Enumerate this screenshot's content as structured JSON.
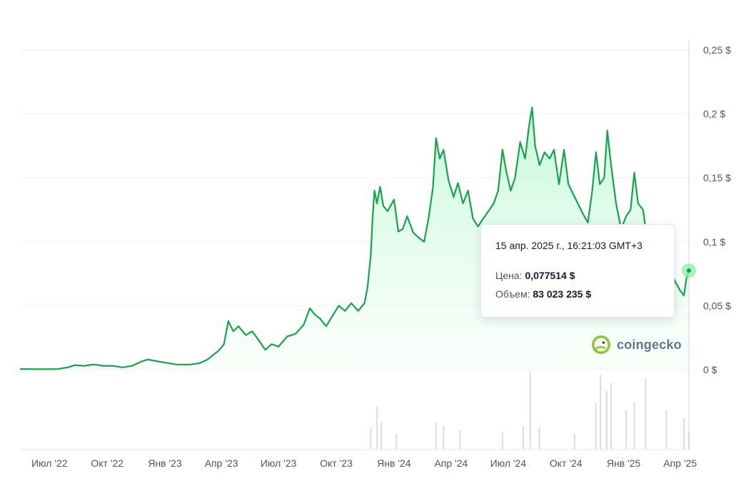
{
  "colors": {
    "line": "#16a34a",
    "fill_top": "#bbf7d0",
    "volume": "#d1d5db",
    "grid": "#eef0f2",
    "marker": "#86efac"
  },
  "brand": {
    "name": "coingecko",
    "icon": "gecko-logo-icon"
  },
  "tooltip": {
    "date": "15 апр. 2025 г., 16:21:03 GMT+3",
    "price_label": "Цена:",
    "price_value": "0,077514 $",
    "volume_label": "Объем:",
    "volume_value": "83 023 235 $"
  },
  "chart_data": {
    "type": "area",
    "title": "",
    "xlabel": "",
    "ylabel": "",
    "ylim": [
      0,
      0.25
    ],
    "y_ticks": [
      {
        "value": 0.25,
        "label": "0,25 $"
      },
      {
        "value": 0.2,
        "label": "0,2 $"
      },
      {
        "value": 0.15,
        "label": "0,15 $"
      },
      {
        "value": 0.1,
        "label": "0,1 $"
      },
      {
        "value": 0.05,
        "label": "0,05 $"
      },
      {
        "value": 0,
        "label": "0 $"
      }
    ],
    "x_range": [
      "2022-05-15",
      "2025-04-15"
    ],
    "x_ticks": [
      {
        "date": "2022-07-01",
        "label": "Июл '22"
      },
      {
        "date": "2022-10-01",
        "label": "Окт '22"
      },
      {
        "date": "2023-01-01",
        "label": "Янв '23"
      },
      {
        "date": "2023-04-01",
        "label": "Апр '23"
      },
      {
        "date": "2023-07-01",
        "label": "Июл '23"
      },
      {
        "date": "2023-10-01",
        "label": "Окт '23"
      },
      {
        "date": "2024-01-01",
        "label": "Янв '24"
      },
      {
        "date": "2024-04-01",
        "label": "Апр '24"
      },
      {
        "date": "2024-07-01",
        "label": "Июл '24"
      },
      {
        "date": "2024-10-01",
        "label": "Окт '24"
      },
      {
        "date": "2025-01-01",
        "label": "Янв '25"
      },
      {
        "date": "2025-04-01",
        "label": "Апр '25"
      }
    ],
    "grid": true,
    "series": [
      {
        "name": "Цена",
        "points": [
          [
            "2022-05-15",
            0.0005
          ],
          [
            "2022-06-15",
            0.0004
          ],
          [
            "2022-07-15",
            0.0005
          ],
          [
            "2022-08-01",
            0.002
          ],
          [
            "2022-08-10",
            0.0035
          ],
          [
            "2022-08-25",
            0.003
          ],
          [
            "2022-09-10",
            0.004
          ],
          [
            "2022-09-25",
            0.003
          ],
          [
            "2022-10-10",
            0.003
          ],
          [
            "2022-10-25",
            0.0018
          ],
          [
            "2022-11-10",
            0.003
          ],
          [
            "2022-11-25",
            0.0065
          ],
          [
            "2022-12-05",
            0.008
          ],
          [
            "2022-12-15",
            0.007
          ],
          [
            "2023-01-01",
            0.0055
          ],
          [
            "2023-01-20",
            0.004
          ],
          [
            "2023-02-10",
            0.004
          ],
          [
            "2023-02-25",
            0.005
          ],
          [
            "2023-03-10",
            0.008
          ],
          [
            "2023-03-20",
            0.012
          ],
          [
            "2023-03-28",
            0.015
          ],
          [
            "2023-04-05",
            0.02
          ],
          [
            "2023-04-12",
            0.038
          ],
          [
            "2023-04-20",
            0.03
          ],
          [
            "2023-04-28",
            0.034
          ],
          [
            "2023-05-10",
            0.027
          ],
          [
            "2023-05-20",
            0.03
          ],
          [
            "2023-06-01",
            0.022
          ],
          [
            "2023-06-10",
            0.0155
          ],
          [
            "2023-06-20",
            0.02
          ],
          [
            "2023-07-01",
            0.018
          ],
          [
            "2023-07-15",
            0.026
          ],
          [
            "2023-07-28",
            0.028
          ],
          [
            "2023-08-10",
            0.035
          ],
          [
            "2023-08-20",
            0.048
          ],
          [
            "2023-08-28",
            0.043
          ],
          [
            "2023-09-05",
            0.04
          ],
          [
            "2023-09-15",
            0.034
          ],
          [
            "2023-09-25",
            0.042
          ],
          [
            "2023-10-05",
            0.05
          ],
          [
            "2023-10-15",
            0.046
          ],
          [
            "2023-10-25",
            0.052
          ],
          [
            "2023-11-05",
            0.046
          ],
          [
            "2023-11-15",
            0.052
          ],
          [
            "2023-11-20",
            0.065
          ],
          [
            "2023-11-25",
            0.09
          ],
          [
            "2023-11-28",
            0.12
          ],
          [
            "2023-12-01",
            0.14
          ],
          [
            "2023-12-05",
            0.13
          ],
          [
            "2023-12-10",
            0.143
          ],
          [
            "2023-12-15",
            0.128
          ],
          [
            "2023-12-22",
            0.124
          ],
          [
            "2024-01-01",
            0.133
          ],
          [
            "2024-01-08",
            0.108
          ],
          [
            "2024-01-15",
            0.11
          ],
          [
            "2024-01-22",
            0.12
          ],
          [
            "2024-02-01",
            0.107
          ],
          [
            "2024-02-10",
            0.103
          ],
          [
            "2024-02-18",
            0.1
          ],
          [
            "2024-02-25",
            0.118
          ],
          [
            "2024-03-03",
            0.142
          ],
          [
            "2024-03-08",
            0.181
          ],
          [
            "2024-03-14",
            0.165
          ],
          [
            "2024-03-20",
            0.172
          ],
          [
            "2024-03-28",
            0.148
          ],
          [
            "2024-04-05",
            0.135
          ],
          [
            "2024-04-12",
            0.146
          ],
          [
            "2024-04-20",
            0.13
          ],
          [
            "2024-04-28",
            0.14
          ],
          [
            "2024-05-06",
            0.118
          ],
          [
            "2024-05-14",
            0.112
          ],
          [
            "2024-05-22",
            0.118
          ],
          [
            "2024-06-01",
            0.125
          ],
          [
            "2024-06-08",
            0.13
          ],
          [
            "2024-06-15",
            0.14
          ],
          [
            "2024-06-22",
            0.172
          ],
          [
            "2024-06-28",
            0.155
          ],
          [
            "2024-07-05",
            0.14
          ],
          [
            "2024-07-12",
            0.15
          ],
          [
            "2024-07-20",
            0.178
          ],
          [
            "2024-07-28",
            0.165
          ],
          [
            "2024-08-03",
            0.19
          ],
          [
            "2024-08-08",
            0.205
          ],
          [
            "2024-08-13",
            0.175
          ],
          [
            "2024-08-20",
            0.16
          ],
          [
            "2024-08-28",
            0.17
          ],
          [
            "2024-09-05",
            0.165
          ],
          [
            "2024-09-12",
            0.172
          ],
          [
            "2024-09-20",
            0.145
          ],
          [
            "2024-09-28",
            0.172
          ],
          [
            "2024-10-05",
            0.145
          ],
          [
            "2024-10-12",
            0.138
          ],
          [
            "2024-10-20",
            0.13
          ],
          [
            "2024-10-28",
            0.122
          ],
          [
            "2024-11-05",
            0.115
          ],
          [
            "2024-11-12",
            0.14
          ],
          [
            "2024-11-18",
            0.17
          ],
          [
            "2024-11-24",
            0.145
          ],
          [
            "2024-12-01",
            0.15
          ],
          [
            "2024-12-06",
            0.187
          ],
          [
            "2024-12-12",
            0.16
          ],
          [
            "2024-12-20",
            0.13
          ],
          [
            "2024-12-28",
            0.11
          ],
          [
            "2025-01-05",
            0.12
          ],
          [
            "2025-01-12",
            0.125
          ],
          [
            "2025-01-18",
            0.154
          ],
          [
            "2025-01-24",
            0.13
          ],
          [
            "2025-02-01",
            0.125
          ],
          [
            "2025-02-08",
            0.1
          ],
          [
            "2025-02-16",
            0.098
          ],
          [
            "2025-02-25",
            0.09
          ],
          [
            "2025-03-05",
            0.085
          ],
          [
            "2025-03-15",
            0.08
          ],
          [
            "2025-03-25",
            0.068
          ],
          [
            "2025-04-01",
            0.062
          ],
          [
            "2025-04-07",
            0.058
          ],
          [
            "2025-04-11",
            0.071
          ],
          [
            "2025-04-15",
            0.077514
          ]
        ]
      }
    ],
    "volume": [
      [
        "2023-11-25",
        0.28
      ],
      [
        "2023-12-05",
        0.55
      ],
      [
        "2023-12-12",
        0.35
      ],
      [
        "2024-01-05",
        0.2
      ],
      [
        "2024-03-08",
        0.35
      ],
      [
        "2024-03-20",
        0.3
      ],
      [
        "2024-04-15",
        0.25
      ],
      [
        "2024-06-22",
        0.22
      ],
      [
        "2024-07-25",
        0.3
      ],
      [
        "2024-08-05",
        1.0
      ],
      [
        "2024-08-20",
        0.28
      ],
      [
        "2024-10-15",
        0.2
      ],
      [
        "2024-11-18",
        0.6
      ],
      [
        "2024-11-25",
        0.95
      ],
      [
        "2024-12-05",
        0.75
      ],
      [
        "2024-12-12",
        0.85
      ],
      [
        "2025-01-05",
        0.5
      ],
      [
        "2025-01-18",
        0.6
      ],
      [
        "2025-02-05",
        0.9
      ],
      [
        "2025-03-10",
        0.5
      ],
      [
        "2025-04-07",
        0.4
      ],
      [
        "2025-04-15",
        0.22
      ]
    ]
  }
}
